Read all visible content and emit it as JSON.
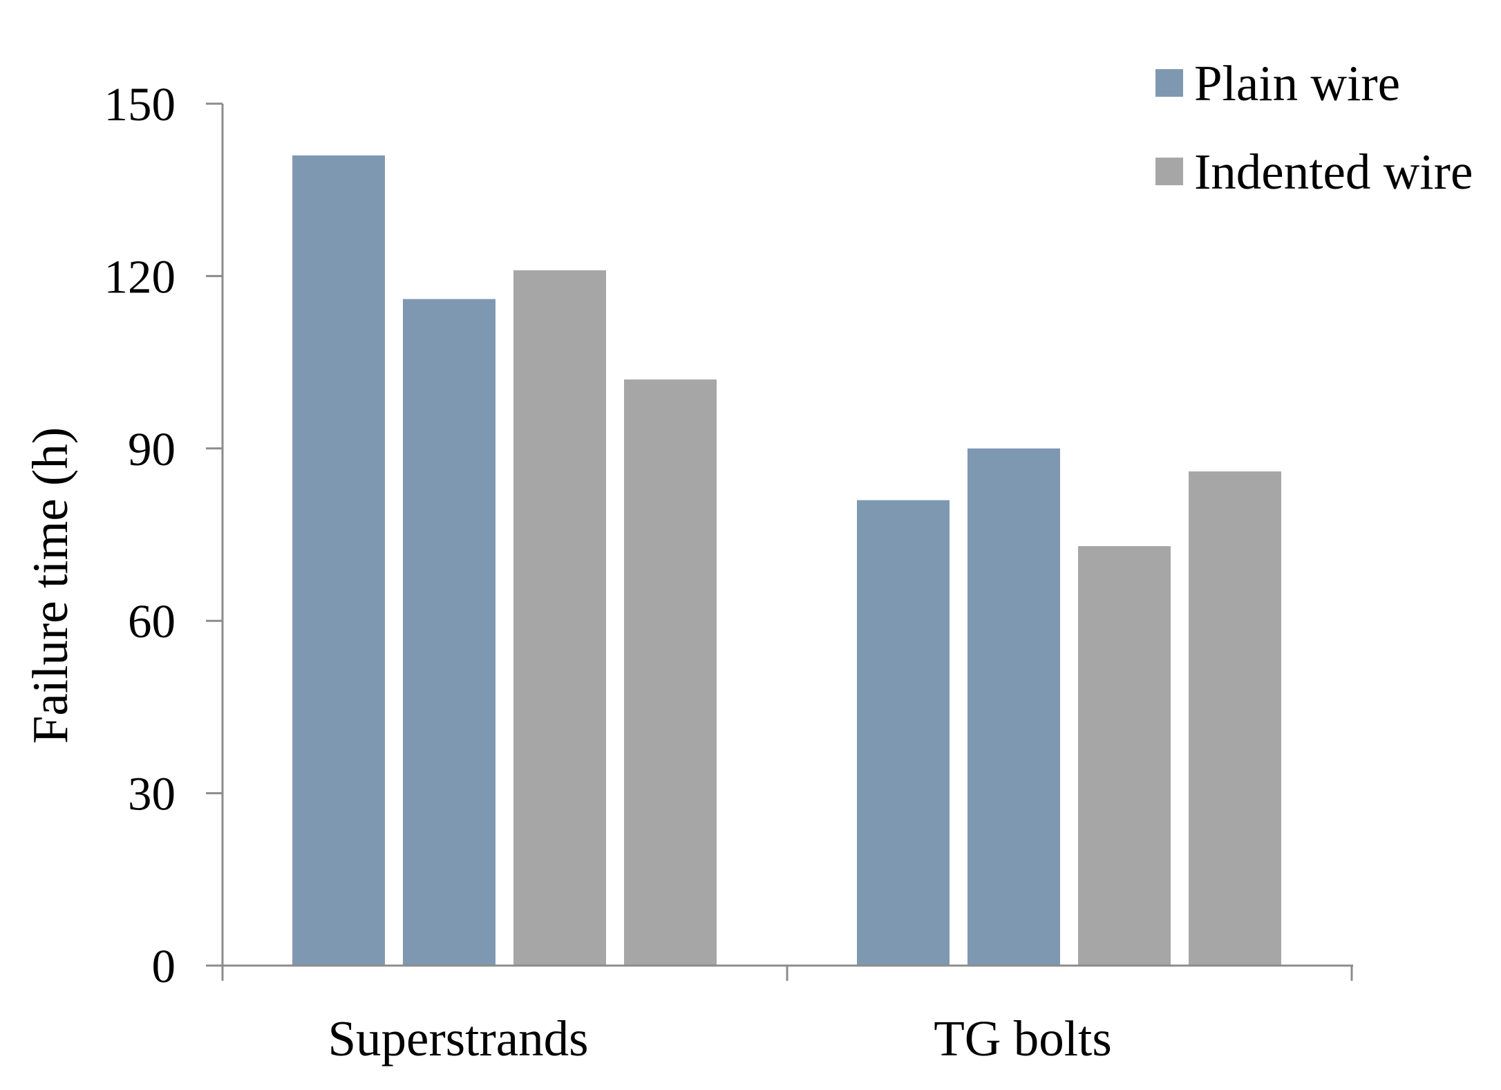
{
  "chart_data": {
    "type": "bar",
    "title": "",
    "xlabel": "",
    "ylabel": "Failure  time (h)",
    "categories": [
      "Superstrands",
      "TG bolts"
    ],
    "ylim": [
      0,
      150
    ],
    "yticks": [
      0,
      30,
      60,
      90,
      120,
      150
    ],
    "grid": false,
    "legend_position": "top-right",
    "legend": [
      {
        "name": "Plain wire",
        "color": "#7f98b2"
      },
      {
        "name": "Indented wire",
        "color": "#a6a6a6"
      }
    ],
    "bars": [
      {
        "category": "Superstrands",
        "series": "Plain wire",
        "value": 141
      },
      {
        "category": "Superstrands",
        "series": "Plain wire",
        "value": 116
      },
      {
        "category": "Superstrands",
        "series": "Indented wire",
        "value": 121
      },
      {
        "category": "Superstrands",
        "series": "Indented wire",
        "value": 102
      },
      {
        "category": "TG bolts",
        "series": "Plain wire",
        "value": 81
      },
      {
        "category": "TG bolts",
        "series": "Plain wire",
        "value": 90
      },
      {
        "category": "TG bolts",
        "series": "Indented wire",
        "value": 73
      },
      {
        "category": "TG bolts",
        "series": "Indented wire",
        "value": 86
      }
    ]
  }
}
